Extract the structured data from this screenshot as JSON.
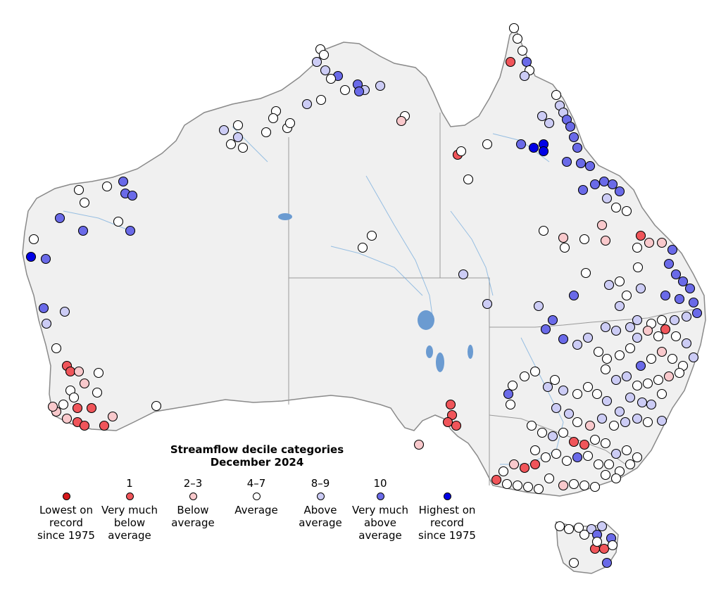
{
  "legend": {
    "title": "Streamflow decile categories",
    "subtitle": "December 2024",
    "items": [
      {
        "range": "",
        "label": [
          "Lowest on",
          "record",
          "since 1975"
        ],
        "color": "#d7191c",
        "name": "lowest-on-record"
      },
      {
        "range": "1",
        "label": [
          "Very much",
          "below",
          "average"
        ],
        "color": "#f0555a",
        "name": "very-much-below-average"
      },
      {
        "range": "2–3",
        "label": [
          "Below",
          "average"
        ],
        "color": "#f9c9cc",
        "name": "below-average"
      },
      {
        "range": "4–7",
        "label": [
          "Average"
        ],
        "color": "#ffffff",
        "name": "average"
      },
      {
        "range": "8–9",
        "label": [
          "Above",
          "average"
        ],
        "color": "#ccccf5",
        "name": "above-average"
      },
      {
        "range": "10",
        "label": [
          "Very much",
          "above",
          "average"
        ],
        "color": "#6a6ae8",
        "name": "very-much-above-average"
      },
      {
        "range": "",
        "label": [
          "Highest on",
          "record",
          "since 1975"
        ],
        "color": "#0000e6",
        "name": "highest-on-record"
      }
    ]
  },
  "colors": {
    "land": "#f0f0f0",
    "coast": "#8a8a8a",
    "borders": "#9a9a9a",
    "rivers": "#6fa8dc",
    "lakes": "#6b9bd1"
  }
}
